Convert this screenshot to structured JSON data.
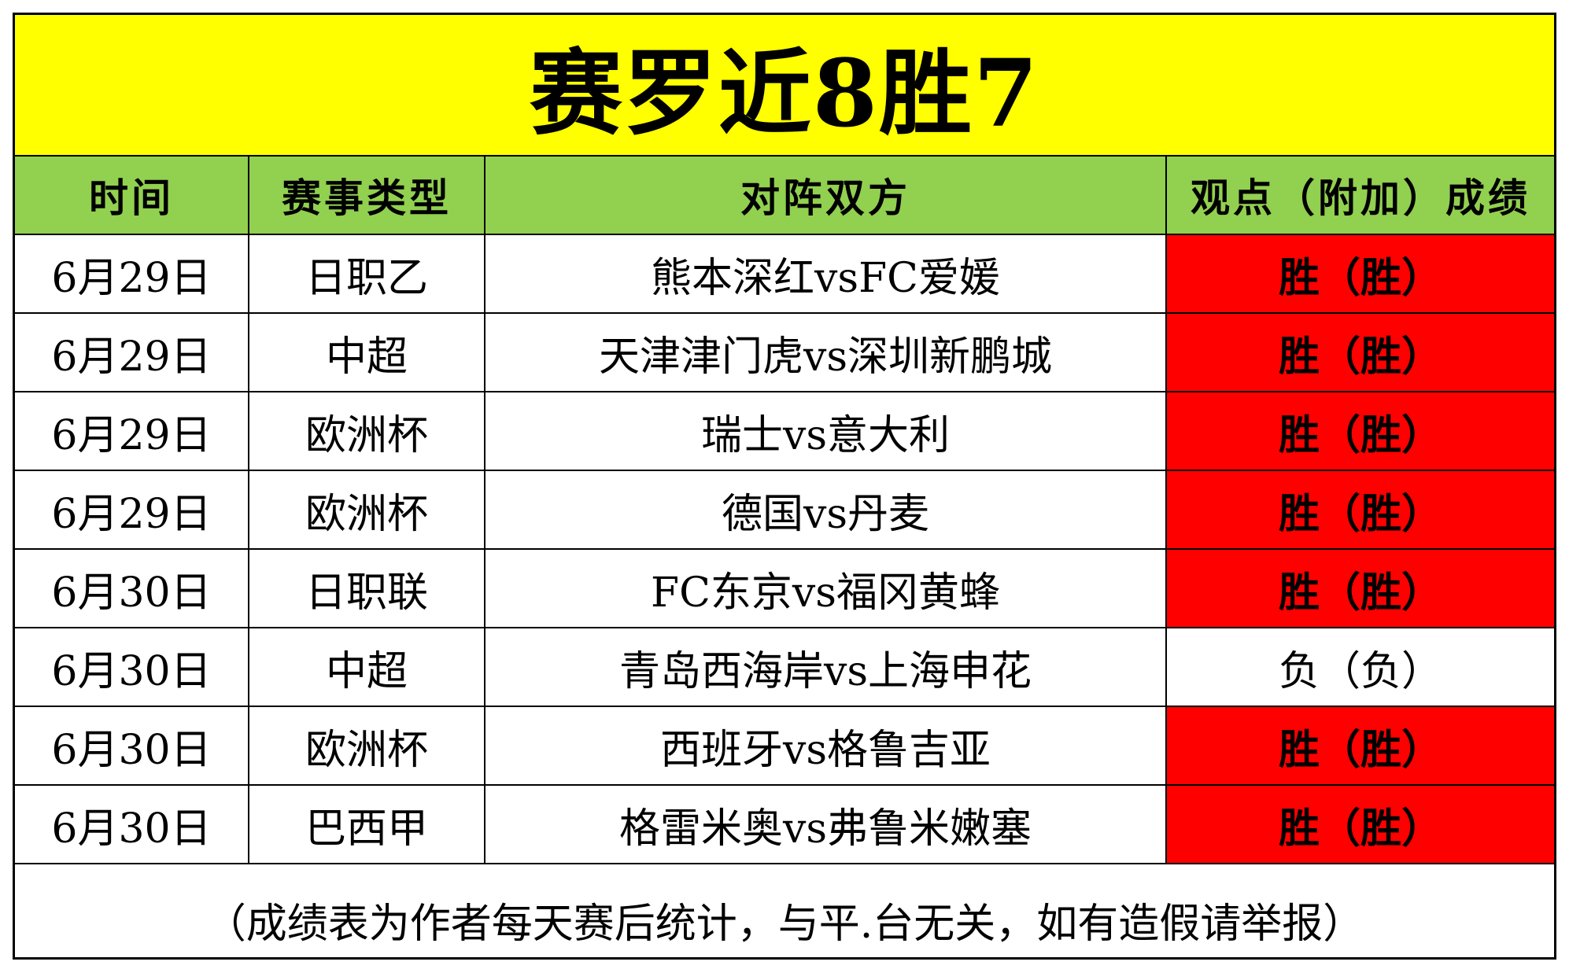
{
  "title": "赛罗近8胜7",
  "table": {
    "headers": [
      "时间",
      "赛事类型",
      "对阵双方",
      "观点（附加）成绩"
    ],
    "rows": [
      {
        "date": "6月29日",
        "league": "日职乙",
        "match": "熊本深红vsFC爱媛",
        "result": "胜（胜）",
        "outcome": "win"
      },
      {
        "date": "6月29日",
        "league": "中超",
        "match": "天津津门虎vs深圳新鹏城",
        "result": "胜（胜）",
        "outcome": "win"
      },
      {
        "date": "6月29日",
        "league": "欧洲杯",
        "match": "瑞士vs意大利",
        "result": "胜（胜）",
        "outcome": "win"
      },
      {
        "date": "6月29日",
        "league": "欧洲杯",
        "match": "德国vs丹麦",
        "result": "胜（胜）",
        "outcome": "win"
      },
      {
        "date": "6月30日",
        "league": "日职联",
        "match": "FC东京vs福冈黄蜂",
        "result": "胜（胜）",
        "outcome": "win"
      },
      {
        "date": "6月30日",
        "league": "中超",
        "match": "青岛西海岸vs上海申花",
        "result": "负（负）",
        "outcome": "loss"
      },
      {
        "date": "6月30日",
        "league": "欧洲杯",
        "match": "西班牙vs格鲁吉亚",
        "result": "胜（胜）",
        "outcome": "win"
      },
      {
        "date": "6月30日",
        "league": "巴西甲",
        "match": "格雷米奥vs弗鲁米嫩塞",
        "result": "胜（胜）",
        "outcome": "win"
      }
    ]
  },
  "footer_note": "（成绩表为作者每天赛后统计，与平.台无关，如有造假请举报）",
  "colors": {
    "title_background": "#ffff00",
    "header_background": "#92d050",
    "win_background": "#ff0000",
    "loss_background": "#ffffff"
  }
}
